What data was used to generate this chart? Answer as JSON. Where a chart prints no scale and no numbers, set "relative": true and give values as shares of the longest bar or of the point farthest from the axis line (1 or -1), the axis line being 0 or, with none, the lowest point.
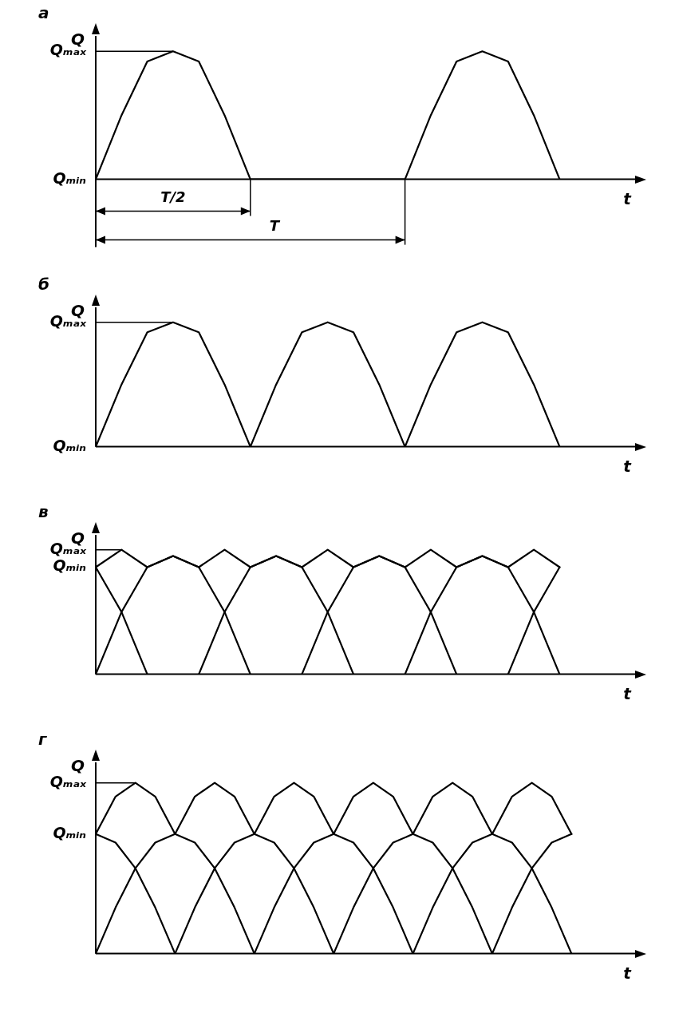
{
  "chart_data": [
    {
      "type": "line",
      "title": "а",
      "xlabel": "t",
      "ylabel": "Q",
      "categories": [
        null,
        null,
        null,
        null,
        null,
        null,
        null,
        null,
        null,
        null,
        null,
        null,
        null,
        null,
        null,
        null,
        null,
        null,
        null,
        null,
        null
      ],
      "relative": true,
      "legend": false,
      "marker": "none",
      "line_style": "solid",
      "annotations": [
        "Qₘₐₓ",
        "Qₘᵢₙ",
        "T/2",
        "T"
      ],
      "series": [
        {
          "color": "#000000",
          "values": [
            0,
            0.5,
            0.92,
            1,
            0.92,
            0.5,
            0,
            0,
            0,
            0,
            0,
            0,
            0,
            0.5,
            0.92,
            1,
            0.92,
            0.5,
            0,
            null,
            null
          ]
        }
      ]
    },
    {
      "type": "line",
      "title": "б",
      "xlabel": "t",
      "ylabel": "Q",
      "categories": [
        null,
        null,
        null,
        null,
        null,
        null,
        null,
        null,
        null,
        null,
        null,
        null,
        null,
        null,
        null,
        null,
        null,
        null,
        null,
        null,
        null
      ],
      "relative": true,
      "legend": false,
      "marker": "none",
      "line_style": "solid",
      "annotations": [
        "Qₘₐₓ",
        "Qₘᵢₙ"
      ],
      "series": [
        {
          "color": "#000000",
          "values": [
            0,
            0.5,
            0.92,
            1,
            0.92,
            0.5,
            0,
            0.5,
            0.92,
            1,
            0.92,
            0.5,
            0,
            0.5,
            0.92,
            1,
            0.92,
            0.5,
            0,
            null,
            null
          ]
        }
      ]
    },
    {
      "type": "line",
      "title": "в",
      "xlabel": "t",
      "ylabel": "Q",
      "categories": [
        null,
        null,
        null,
        null,
        null,
        null,
        null,
        null,
        null,
        null,
        null,
        null,
        null,
        null,
        null,
        null,
        null,
        null,
        null,
        null,
        null
      ],
      "relative": true,
      "legend": false,
      "marker": "none",
      "line_style": "solid",
      "annotations": [
        "Qₘₐₓ",
        "Qₘᵢₙ"
      ],
      "series": [
        {
          "color": "#000000",
          "values": [
            0.86,
            1,
            0.86,
            0.95,
            0.86,
            1,
            0.86,
            0.95,
            0.86,
            1,
            0.86,
            0.95,
            0.86,
            1,
            0.86,
            0.95,
            0.86,
            1,
            0.86,
            null,
            null
          ]
        },
        {
          "color": "#000000",
          "values": [
            0.86,
            0.5,
            0,
            null,
            null,
            null,
            null,
            null,
            null,
            null,
            null,
            null,
            null,
            null,
            null,
            null,
            null,
            null,
            null,
            null,
            null
          ]
        },
        {
          "color": "#000000",
          "values": [
            0,
            0.5,
            0.86,
            0.95,
            0.86,
            0.5,
            0,
            null,
            null,
            null,
            null,
            null,
            null,
            null,
            null,
            null,
            null,
            null,
            null,
            null,
            null
          ]
        },
        {
          "color": "#000000",
          "values": [
            null,
            null,
            null,
            null,
            0,
            0.5,
            0.86,
            0.95,
            0.86,
            0.5,
            0,
            null,
            null,
            null,
            null,
            null,
            null,
            null,
            null,
            null,
            null
          ]
        },
        {
          "color": "#000000",
          "values": [
            null,
            null,
            null,
            null,
            null,
            null,
            null,
            null,
            0,
            0.5,
            0.86,
            0.95,
            0.86,
            0.5,
            0,
            null,
            null,
            null,
            null,
            null,
            null
          ]
        },
        {
          "color": "#000000",
          "values": [
            null,
            null,
            null,
            null,
            null,
            null,
            null,
            null,
            null,
            null,
            null,
            null,
            0,
            0.5,
            0.86,
            0.95,
            0.86,
            0.5,
            0,
            null,
            null
          ]
        },
        {
          "color": "#000000",
          "values": [
            null,
            null,
            null,
            null,
            null,
            null,
            null,
            null,
            null,
            null,
            null,
            null,
            null,
            null,
            null,
            null,
            0,
            0.5,
            0.86,
            null,
            null
          ]
        }
      ]
    },
    {
      "type": "line",
      "title": "г",
      "xlabel": "t",
      "ylabel": "Q",
      "categories": [
        null,
        null,
        null,
        null,
        null,
        null,
        null,
        null,
        null,
        null,
        null,
        null,
        null,
        null,
        null,
        null,
        null,
        null,
        null,
        null,
        null,
        null,
        null,
        null,
        null,
        null,
        null
      ],
      "relative": true,
      "legend": false,
      "marker": "none",
      "line_style": "solid",
      "annotations": [
        "Qₘₐₓ",
        "Qₘᵢₙ"
      ],
      "series": [
        {
          "color": "#000000",
          "values": [
            0.7,
            0.92,
            1,
            0.92,
            0.7,
            0.92,
            1,
            0.92,
            0.7,
            0.92,
            1,
            0.92,
            0.7,
            0.92,
            1,
            0.92,
            0.7,
            0.92,
            1,
            0.92,
            0.7,
            0.92,
            1,
            0.92,
            0.7,
            null,
            null
          ]
        },
        {
          "color": "#000000",
          "values": [
            0.7,
            0.65,
            0.5,
            0.27,
            0,
            null,
            null,
            null,
            null,
            null,
            null,
            null,
            null,
            null,
            null,
            null,
            null,
            null,
            null,
            null,
            null,
            null,
            null,
            null,
            null,
            null,
            null
          ]
        },
        {
          "color": "#000000",
          "values": [
            0,
            0.27,
            0.5,
            0.65,
            0.7,
            0.65,
            0.5,
            0.27,
            0,
            null,
            null,
            null,
            null,
            null,
            null,
            null,
            null,
            null,
            null,
            null,
            null,
            null,
            null,
            null,
            null,
            null,
            null
          ]
        },
        {
          "color": "#000000",
          "values": [
            null,
            null,
            null,
            null,
            0,
            0.27,
            0.5,
            0.65,
            0.7,
            0.65,
            0.5,
            0.27,
            0,
            null,
            null,
            null,
            null,
            null,
            null,
            null,
            null,
            null,
            null,
            null,
            null,
            null,
            null
          ]
        },
        {
          "color": "#000000",
          "values": [
            null,
            null,
            null,
            null,
            null,
            null,
            null,
            null,
            0,
            0.27,
            0.5,
            0.65,
            0.7,
            0.65,
            0.5,
            0.27,
            0,
            null,
            null,
            null,
            null,
            null,
            null,
            null,
            null,
            null,
            null
          ]
        },
        {
          "color": "#000000",
          "values": [
            null,
            null,
            null,
            null,
            null,
            null,
            null,
            null,
            null,
            null,
            null,
            null,
            0,
            0.27,
            0.5,
            0.65,
            0.7,
            0.65,
            0.5,
            0.27,
            0,
            null,
            null,
            null,
            null,
            null,
            null
          ]
        },
        {
          "color": "#000000",
          "values": [
            null,
            null,
            null,
            null,
            null,
            null,
            null,
            null,
            null,
            null,
            null,
            null,
            null,
            null,
            null,
            null,
            0,
            0.27,
            0.5,
            0.65,
            0.7,
            0.65,
            0.5,
            0.27,
            0,
            null,
            null
          ]
        },
        {
          "color": "#000000",
          "values": [
            null,
            null,
            null,
            null,
            null,
            null,
            null,
            null,
            null,
            null,
            null,
            null,
            null,
            null,
            null,
            null,
            null,
            null,
            null,
            null,
            0,
            0.27,
            0.5,
            0.65,
            0.7,
            null,
            null
          ]
        }
      ]
    }
  ]
}
